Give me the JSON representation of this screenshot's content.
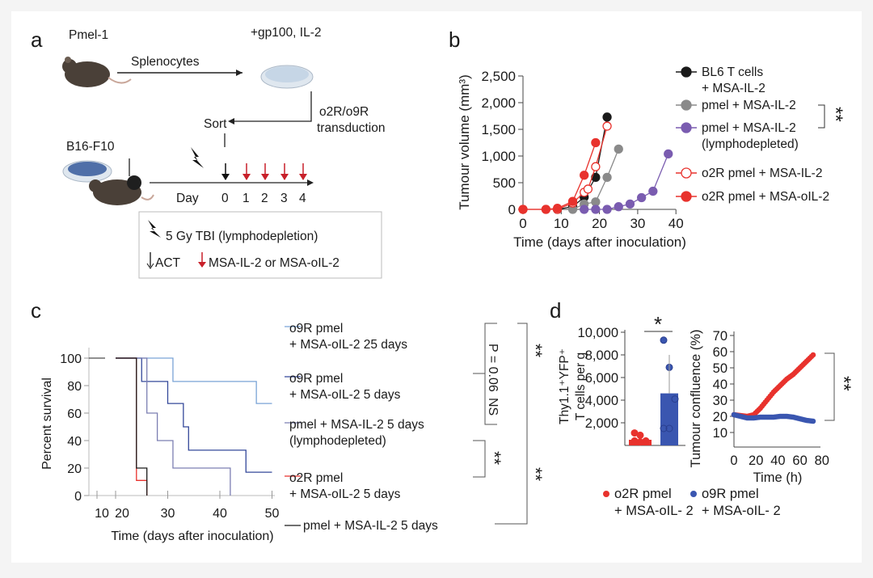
{
  "panels": {
    "a": {
      "letter": "a",
      "donor": "Pmel-1",
      "splenocytes": "Splenocytes",
      "culture": "+gp100, IL-2",
      "transduction_1": "o2R/o9R",
      "transduction_2": "transduction",
      "sort": "Sort",
      "tumour": "B16-F10",
      "day_label": "Day",
      "days": [
        "0",
        "1",
        "2",
        "3",
        "4"
      ],
      "legend_tbi": "5 Gy TBI (lymphodepletion)",
      "legend_act": "ACT",
      "legend_il2": "MSA-IL-2 or MSA-oIL-2"
    },
    "b": {
      "letter": "b"
    },
    "c": {
      "letter": "c"
    },
    "d": {
      "letter": "d"
    }
  },
  "colors": {
    "black": "#1a1a1a",
    "gray": "#8a8a8a",
    "purple": "#7a5cb0",
    "red": "#e8322d",
    "lightblue": "#7aa3d6",
    "navy": "#34489a",
    "slate": "#7c7fb2",
    "blue": "#3a56b0",
    "accent_red": "#c8202a"
  },
  "chart_data": [
    {
      "id": "b",
      "type": "line",
      "xlabel": "Time (days after inoculation)",
      "ylabel": "Tumour volume (mm³)",
      "xlim": [
        0,
        40
      ],
      "ylim": [
        0,
        2500
      ],
      "xticks": [
        "0",
        "10",
        "20",
        "30",
        "40"
      ],
      "yticks": [
        "0",
        "500",
        "1,000",
        "1,500",
        "2,000",
        "2,500"
      ],
      "significance": "**",
      "series": [
        {
          "name": "BL6 T cells\n+ MSA-IL-2",
          "color": "black",
          "marker": "filled",
          "x": [
            9,
            13,
            16,
            19,
            22
          ],
          "y": [
            0,
            50,
            230,
            600,
            1730
          ]
        },
        {
          "name": "pmel + MSA-IL-2",
          "color": "gray",
          "marker": "filled",
          "x": [
            13,
            16,
            19,
            22,
            25
          ],
          "y": [
            0,
            100,
            140,
            600,
            1130
          ]
        },
        {
          "name": "pmel + MSA-IL-2\n(lymphodepleted)",
          "color": "purple",
          "marker": "filled",
          "x": [
            16,
            19,
            22,
            25,
            28,
            31,
            34,
            38
          ],
          "y": [
            0,
            0,
            0,
            50,
            100,
            220,
            340,
            1040
          ]
        },
        {
          "name": "o2R pmel + MSA-IL-2",
          "color": "red",
          "marker": "open",
          "x": [
            0,
            6,
            9,
            13,
            16,
            17,
            19,
            22
          ],
          "y": [
            0,
            0,
            0,
            120,
            320,
            380,
            800,
            1560
          ]
        },
        {
          "name": "o2R pmel + MSA-oIL-2",
          "color": "red",
          "marker": "filled",
          "x": [
            0,
            6,
            9,
            13,
            16,
            19
          ],
          "y": [
            0,
            0,
            20,
            150,
            640,
            1250
          ]
        }
      ]
    },
    {
      "id": "c",
      "type": "line",
      "subtype": "kaplan-meier",
      "xlabel": "Time (days after inoculation)",
      "ylabel": "Percent survival",
      "xlim": [
        10,
        50
      ],
      "ylim": [
        0,
        100
      ],
      "xticks": [
        "10",
        "20",
        "30",
        "40",
        "50"
      ],
      "yticks": [
        "0",
        "20",
        "40",
        "60",
        "80",
        "100"
      ],
      "annotations": {
        "p": "P = 0.06",
        "ns": "NS",
        "sig1": "**",
        "sig2": "**",
        "sig3": "**"
      },
      "series": [
        {
          "name": "o9R pmel\n+ MSA-oIL-2 25 days",
          "color": "lightblue",
          "x": [
            20,
            31,
            47,
            50
          ],
          "y": [
            100,
            83,
            67,
            67
          ]
        },
        {
          "name": "o9R pmel\n+ MSA-oIL-2 5 days",
          "color": "navy",
          "x": [
            20,
            25,
            30,
            33,
            34,
            45,
            50
          ],
          "y": [
            100,
            83,
            67,
            50,
            33,
            17,
            17
          ]
        },
        {
          "name": "pmel + MSA-IL-2 5 days\n(lymphodepleted)",
          "color": "slate",
          "x": [
            20,
            26,
            28,
            31,
            42
          ],
          "y": [
            100,
            60,
            40,
            20,
            0
          ]
        },
        {
          "name": "o2R pmel\n+ MSA-oIL-2 5 days",
          "color": "red",
          "x": [
            20,
            24,
            26
          ],
          "y": [
            100,
            11,
            0
          ]
        },
        {
          "name": "pmel + MSA-IL-2 5 days",
          "color": "black",
          "x": [
            20,
            24,
            26
          ],
          "y": [
            100,
            20,
            0
          ]
        }
      ]
    },
    {
      "id": "d1",
      "type": "bar",
      "ylabel": "Thy1.1⁺YFP⁺\nT cells per g",
      "ylim": [
        0,
        10000
      ],
      "yticks": [
        "2,000",
        "4,000",
        "6,000",
        "8,000",
        "10,000"
      ],
      "significance": "*",
      "categories": [
        "o2R pmel + MSA-oIL-2",
        "o9R pmel + MSA-oIL-2"
      ],
      "values": [
        500,
        4600
      ],
      "points": [
        [
          1100,
          900,
          400,
          400,
          300
        ],
        [
          9300,
          6900,
          4100,
          1500,
          1500
        ]
      ]
    },
    {
      "id": "d2",
      "type": "line",
      "xlabel": "Time (h)",
      "ylabel": "Tumour confluence (%)",
      "xlim": [
        0,
        80
      ],
      "ylim": [
        10,
        70
      ],
      "xticks": [
        "0",
        "20",
        "40",
        "60",
        "80"
      ],
      "yticks": [
        "10",
        "20",
        "30",
        "40",
        "50",
        "60",
        "70"
      ],
      "significance": "**",
      "series": [
        {
          "name": "o2R pmel\n+ MSA-oIL- 2",
          "color": "red",
          "x": [
            0,
            6,
            12,
            18,
            24,
            30,
            36,
            42,
            48,
            54,
            60,
            66,
            72
          ],
          "y": [
            21,
            20.5,
            20,
            21,
            25,
            30,
            35,
            39,
            43,
            46,
            50,
            54,
            58
          ]
        },
        {
          "name": "o9R pmel\n+ MSA-oIL- 2",
          "color": "blue",
          "x": [
            0,
            6,
            12,
            18,
            24,
            30,
            36,
            42,
            48,
            54,
            60,
            66,
            72
          ],
          "y": [
            21,
            20,
            19,
            19,
            19.5,
            19.5,
            19.5,
            20,
            20,
            19.5,
            18.5,
            17.5,
            17
          ]
        }
      ]
    }
  ]
}
